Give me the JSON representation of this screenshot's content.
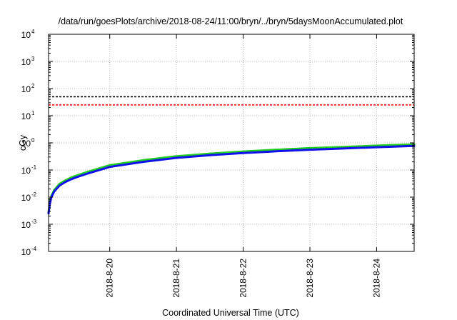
{
  "chart_data": {
    "type": "line",
    "title": "/data/run/goesPlots/archive/2018-08-24/11:00/bryn/../bryn/5daysMoonAccumulated.plot",
    "xlabel": "Coordinated Universal Time (UTC)",
    "ylabel": "cGy",
    "y_scale": "log",
    "ylim": [
      0.0001,
      10000
    ],
    "xlim": [
      "2018-08-19T02:00",
      "2018-08-24T13:30"
    ],
    "y_ticks": [
      {
        "base": "10",
        "exp": "-4",
        "value": 0.0001
      },
      {
        "base": "10",
        "exp": "-3",
        "value": 0.001
      },
      {
        "base": "10",
        "exp": "-2",
        "value": 0.01
      },
      {
        "base": "10",
        "exp": "-1",
        "value": 0.1
      },
      {
        "base": "10",
        "exp": "0",
        "value": 1
      },
      {
        "base": "10",
        "exp": "1",
        "value": 10
      },
      {
        "base": "10",
        "exp": "2",
        "value": 100
      },
      {
        "base": "10",
        "exp": "3",
        "value": 1000
      },
      {
        "base": "10",
        "exp": "4",
        "value": 10000
      }
    ],
    "x_ticks": [
      {
        "label": "2018-8-20",
        "value": "2018-08-20T00:00"
      },
      {
        "label": "2018-8-21",
        "value": "2018-08-21T00:00"
      },
      {
        "label": "2018-8-22",
        "value": "2018-08-22T00:00"
      },
      {
        "label": "2018-8-23",
        "value": "2018-08-23T00:00"
      },
      {
        "label": "2018-8-24",
        "value": "2018-08-24T00:00"
      }
    ],
    "grid": true,
    "reference_lines": [
      {
        "value": 50,
        "color": "#000000",
        "style": "dashed"
      },
      {
        "value": 25,
        "color": "#ff0000",
        "style": "dashed"
      }
    ],
    "series": [
      {
        "color": "#22cc22",
        "x": [
          "2018-08-19T02:00",
          "2018-08-19T02:30",
          "2018-08-19T03:00",
          "2018-08-19T04:00",
          "2018-08-19T05:00",
          "2018-08-19T06:00",
          "2018-08-19T08:00",
          "2018-08-19T10:00",
          "2018-08-19T12:00",
          "2018-08-19T16:00",
          "2018-08-20T00:00",
          "2018-08-20T12:00",
          "2018-08-21T00:00",
          "2018-08-21T12:00",
          "2018-08-22T00:00",
          "2018-08-22T12:00",
          "2018-08-23T00:00",
          "2018-08-23T12:00",
          "2018-08-24T00:00",
          "2018-08-24T13:30"
        ],
        "y": [
          0.0028,
          0.0065,
          0.011,
          0.018,
          0.024,
          0.031,
          0.041,
          0.052,
          0.062,
          0.085,
          0.15,
          0.23,
          0.32,
          0.4,
          0.48,
          0.56,
          0.64,
          0.71,
          0.79,
          0.88
        ]
      },
      {
        "color": "#1111ee",
        "x": [
          "2018-08-19T02:00",
          "2018-08-19T02:30",
          "2018-08-19T03:00",
          "2018-08-19T04:00",
          "2018-08-19T05:00",
          "2018-08-19T06:00",
          "2018-08-19T08:00",
          "2018-08-19T10:00",
          "2018-08-19T12:00",
          "2018-08-19T16:00",
          "2018-08-20T00:00",
          "2018-08-20T12:00",
          "2018-08-21T00:00",
          "2018-08-21T12:00",
          "2018-08-22T00:00",
          "2018-08-22T12:00",
          "2018-08-23T00:00",
          "2018-08-23T12:00",
          "2018-08-24T00:00",
          "2018-08-24T13:30"
        ],
        "y": [
          0.0025,
          0.0058,
          0.0098,
          0.016,
          0.021,
          0.027,
          0.036,
          0.045,
          0.054,
          0.074,
          0.13,
          0.2,
          0.28,
          0.35,
          0.42,
          0.49,
          0.56,
          0.62,
          0.69,
          0.77
        ]
      }
    ]
  }
}
